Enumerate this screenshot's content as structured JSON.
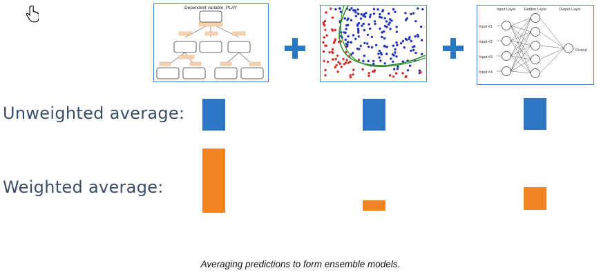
{
  "panels": {
    "tree": {
      "title": "Dependent variable: PLAY"
    },
    "nn": {
      "input_layer": "Input Layer",
      "hidden_layer": "Hidden Layer",
      "output_layer": "Output Layer",
      "inputs": [
        "Input #1",
        "Input #2",
        "Input #3",
        "Input #4"
      ],
      "output": "Output"
    }
  },
  "rows": {
    "unweighted_label": "Unweighted average:",
    "weighted_label": "Weighted average:"
  },
  "bars": {
    "unweighted_color": "#2e75c4",
    "weighted_color": "#f28522",
    "unweighted_weights": [
      1,
      1,
      1
    ],
    "weighted_weights": [
      2.02,
      0.33,
      0.73
    ]
  },
  "caption": "Averaging predictions to form ensemble models.",
  "icons": [
    "hand-cursor-icon",
    "plus-icon"
  ]
}
